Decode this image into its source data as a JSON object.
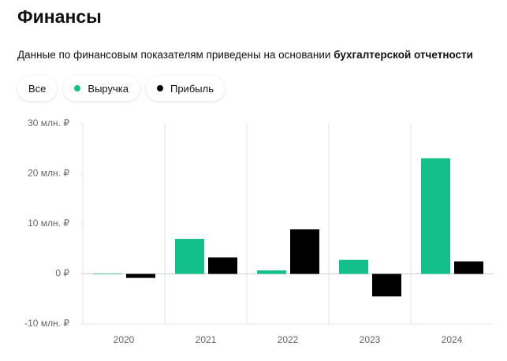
{
  "header": {
    "title": "Финансы",
    "subtitle": "Данные по финансовым показателям приведены на основании",
    "subtitle_link": "бухгалтерской отчетности"
  },
  "filters": {
    "all": "Все"
  },
  "chart_data": {
    "type": "bar",
    "categories": [
      "2020",
      "2021",
      "2022",
      "2023",
      "2024"
    ],
    "series": [
      {
        "name": "Выручка",
        "color": "#13bf8a",
        "values": [
          0.1,
          7.0,
          0.7,
          2.8,
          23.1
        ]
      },
      {
        "name": "Прибыль",
        "color": "#000000",
        "values": [
          -0.8,
          3.3,
          8.9,
          -4.5,
          2.5
        ]
      }
    ],
    "ylim": [
      -10,
      30
    ],
    "yticks": [
      {
        "value": -10,
        "label": "-10 млн. ₽"
      },
      {
        "value": 0,
        "label": "0 ₽"
      },
      {
        "value": 10,
        "label": "10 млн. ₽"
      },
      {
        "value": 20,
        "label": "20 млн. ₽"
      },
      {
        "value": 30,
        "label": "30 млн. ₽"
      }
    ]
  }
}
